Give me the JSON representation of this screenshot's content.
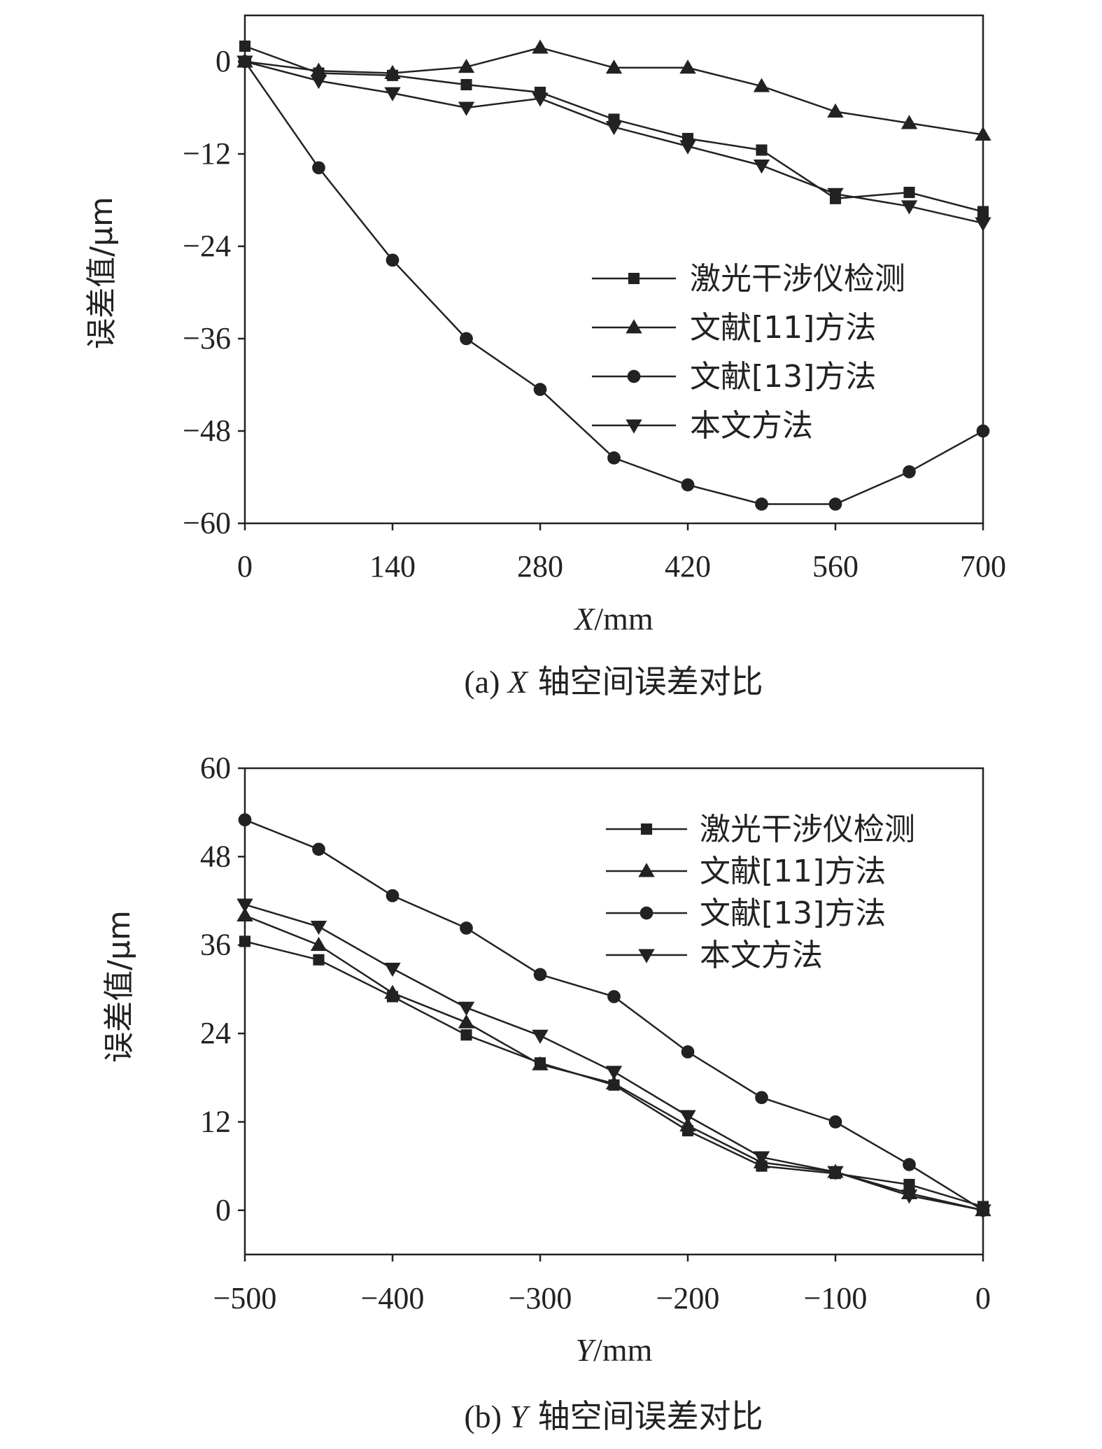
{
  "colors": {
    "ink": "#222222",
    "background": "#ffffff"
  },
  "chart_data": [
    {
      "type": "line",
      "title": "",
      "caption_prefix": "(a)",
      "caption_var": "X",
      "caption_text": "轴空间误差对比",
      "xlabel_var": "X",
      "xlabel_unit": "/mm",
      "ylabel": "误差值/μm",
      "xlim": [
        0,
        700
      ],
      "ylim": [
        -60,
        6
      ],
      "x_ticks": [
        0,
        140,
        280,
        420,
        560,
        700
      ],
      "y_ticks": [
        0,
        -12,
        -24,
        -36,
        -48,
        -60
      ],
      "x_tick_labels": [
        "0",
        "140",
        "280",
        "420",
        "560",
        "700"
      ],
      "y_tick_labels": [
        "0",
        "−12",
        "−24",
        "−36",
        "−48",
        "−60"
      ],
      "grid": false,
      "legend_position": "center-right",
      "x": [
        0,
        70,
        140,
        210,
        280,
        350,
        420,
        490,
        560,
        630,
        700
      ],
      "series": [
        {
          "name": "激光干涉仪检测",
          "marker": "square",
          "values": [
            2,
            -1.5,
            -1.8,
            -3,
            -4,
            -7.5,
            -10,
            -11.5,
            -17.8,
            -17,
            -19.5
          ]
        },
        {
          "name": "文献[11]方法",
          "marker": "triangle-up",
          "values": [
            0,
            -1.2,
            -1.5,
            -0.7,
            1.8,
            -0.8,
            -0.8,
            -3.2,
            -6.5,
            -8,
            -9.5
          ]
        },
        {
          "name": "文献[13]方法",
          "marker": "circle",
          "values": [
            0,
            -13.8,
            -25.8,
            -36,
            -42.6,
            -51.5,
            -55,
            -57.5,
            -57.5,
            -53.3,
            -48
          ]
        },
        {
          "name": "本文方法",
          "marker": "triangle-down",
          "values": [
            0,
            -2.5,
            -4.1,
            -6,
            -4.8,
            -8.5,
            -11,
            -13.5,
            -17.2,
            -18.8,
            -21
          ]
        }
      ]
    },
    {
      "type": "line",
      "title": "",
      "caption_prefix": "(b)",
      "caption_var": "Y",
      "caption_text": "轴空间误差对比",
      "xlabel_var": "Y",
      "xlabel_unit": "/mm",
      "ylabel": "误差值/μm",
      "xlim": [
        -500,
        0
      ],
      "ylim": [
        -6,
        60
      ],
      "x_ticks": [
        -500,
        -400,
        -300,
        -200,
        -100,
        0
      ],
      "y_ticks": [
        60,
        48,
        36,
        24,
        12,
        0
      ],
      "x_tick_labels": [
        "−500",
        "−400",
        "−300",
        "−200",
        "−100",
        "0"
      ],
      "y_tick_labels": [
        "60",
        "48",
        "36",
        "24",
        "12",
        "0"
      ],
      "grid": false,
      "legend_position": "top-right",
      "x": [
        -500,
        -450,
        -400,
        -350,
        -300,
        -250,
        -200,
        -150,
        -100,
        -50,
        0
      ],
      "series": [
        {
          "name": "激光干涉仪检测",
          "marker": "square",
          "values": [
            36.5,
            34,
            29,
            23.8,
            20,
            17,
            10.8,
            6,
            5,
            3.5,
            0.5
          ]
        },
        {
          "name": "文献[11]方法",
          "marker": "triangle-up",
          "values": [
            40,
            36,
            29.5,
            25.5,
            19.8,
            17.2,
            11.5,
            6.5,
            5.2,
            2.3,
            0
          ]
        },
        {
          "name": "文献[13]方法",
          "marker": "circle",
          "values": [
            53,
            49,
            42.7,
            38.3,
            32,
            29,
            21.5,
            15.3,
            12,
            6.2,
            0
          ]
        },
        {
          "name": "本文方法",
          "marker": "triangle-down",
          "values": [
            41.5,
            38.5,
            32.8,
            27.5,
            23.7,
            18.8,
            12.8,
            7.2,
            5.2,
            2,
            0
          ]
        }
      ]
    }
  ]
}
